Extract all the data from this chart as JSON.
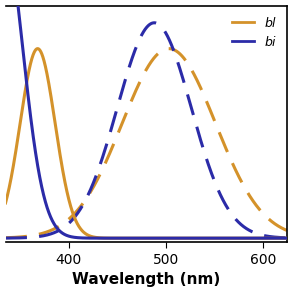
{
  "title": "",
  "xlabel": "Wavelength (nm)",
  "ylabel": "",
  "xlim": [
    335,
    625
  ],
  "ylim": [
    -0.02,
    1.08
  ],
  "orange_color": "#D4922A",
  "blue_color": "#2B2BA8",
  "legend_labels": [
    "bl",
    "bi"
  ],
  "absorption_orange": {
    "peak": 368,
    "sigma": 18,
    "amplitude": 0.88
  },
  "absorption_blue": {
    "peak": 330,
    "sigma": 22,
    "amplitude": 1.5
  },
  "fluorescence_orange": {
    "peak": 503,
    "sigma": 48,
    "amplitude": 0.88
  },
  "fluorescence_blue": {
    "peak": 488,
    "sigma": 38,
    "amplitude": 1.0
  }
}
